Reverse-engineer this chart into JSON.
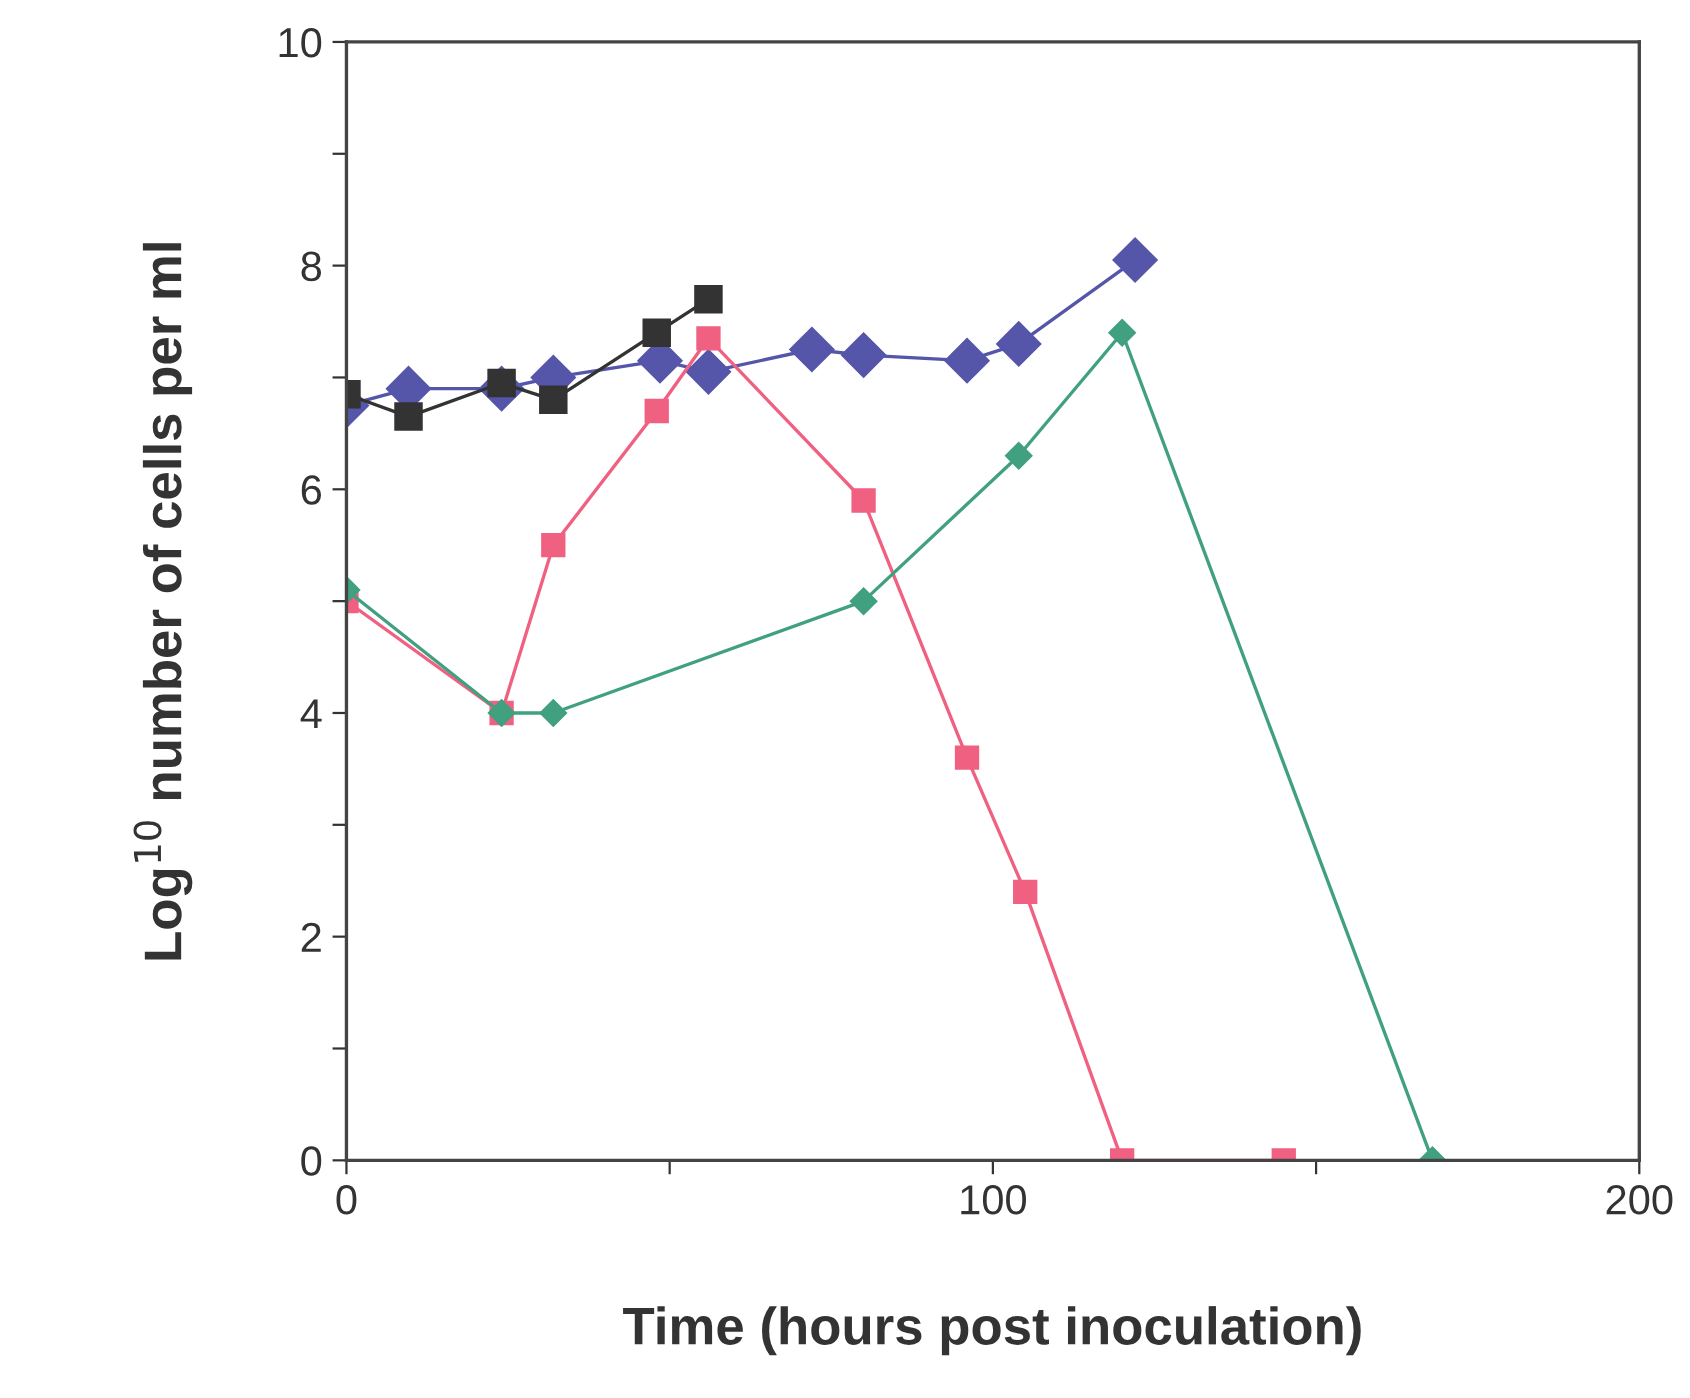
{
  "chart_data": {
    "type": "line",
    "xlabel": "Time (hours post inoculation)",
    "ylabel": "Log$^{10}$ number of cells per ml",
    "xlim": [
      0,
      200
    ],
    "ylim": [
      0,
      10
    ],
    "xticks": [
      0,
      {
        "value": 50,
        "label": null
      },
      100,
      {
        "value": 150,
        "label": null
      },
      200
    ],
    "yticks": [
      0,
      {
        "value": 1,
        "label": null
      },
      2,
      {
        "value": 3,
        "label": null
      },
      4,
      {
        "value": 5,
        "label": null
      },
      6,
      {
        "value": 7,
        "label": null
      },
      8,
      {
        "value": 9,
        "label": null
      },
      10
    ],
    "grid": false,
    "legend": false,
    "line_style": "solid",
    "series": [
      {
        "color": "#5555aa",
        "marker": "diamond",
        "x": [
          0,
          9.6,
          24,
          32,
          48.5,
          56,
          72,
          80,
          96,
          104,
          122
        ],
        "values": [
          6.75,
          6.9,
          6.9,
          7.0,
          7.15,
          7.05,
          7.25,
          7.2,
          7.15,
          7.3,
          8.05
        ]
      },
      {
        "color": "#333333",
        "marker": "square",
        "x": [
          0,
          9.6,
          24,
          32,
          48,
          56
        ],
        "values": [
          6.85,
          6.65,
          6.95,
          6.8,
          7.4,
          7.7
        ]
      },
      {
        "color": "#f06080",
        "marker": "square",
        "x": [
          0,
          24,
          32,
          48,
          56,
          80,
          96,
          105,
          120,
          145
        ],
        "values": [
          5.0,
          4.0,
          5.5,
          6.7,
          7.35,
          5.9,
          3.6,
          2.4,
          0,
          0
        ]
      },
      {
        "color": "#40a080",
        "marker": "diamond",
        "x": [
          0,
          24,
          32,
          80,
          104,
          120,
          168
        ],
        "values": [
          5.1,
          4.0,
          4.0,
          5.0,
          6.3,
          7.4,
          0
        ]
      }
    ]
  }
}
